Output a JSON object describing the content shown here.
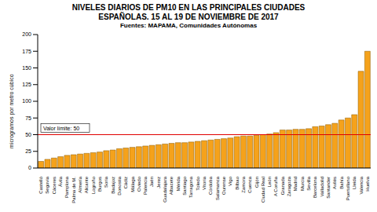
{
  "chart_data": {
    "type": "bar",
    "title": "NIVELES DIARIOS DE PM10 EN LAS PRINCIPALES CIUDADES ESPAÑOLAS. 15 AL 19 DE NOVIEMBRE DE 2017",
    "subtitle": "Fuentes: MAPAMA, Comunidades Autónomas",
    "y_label": "microgramos por metro cúbico",
    "categories": [
      "Castelló",
      "Segovia",
      "Cáceres",
      "Ávila",
      "Pamplona",
      "Palma de M.",
      "Almería",
      "Alicante",
      "Logroño",
      "Burgos",
      "Soria",
      "Badajoz",
      "Donostia",
      "Cádiz",
      "Málaga",
      "Oviedo",
      "Palencia",
      "Jaén",
      "Jerez",
      "Guadalajara",
      "Albacete",
      "Mérida",
      "Santiago",
      "Tarragona",
      "Toledo",
      "Vitoria",
      "Córdoba",
      "Salamanca",
      "Ourense",
      "Vigo",
      "Bilbao",
      "Zamora",
      "Cuenca",
      "Gijón",
      "Ciudad Real",
      "León",
      "A Coruña",
      "Granada",
      "Zaragoza",
      "Madrid",
      "Murcia",
      "Sevilla",
      "Barcelona",
      "Valladolid",
      "Santander",
      "Avilés",
      "Bahía",
      "Puertollano",
      "Lleida",
      "Valencia",
      "Huelva"
    ],
    "values": [
      10,
      13,
      15,
      17,
      19,
      20,
      21,
      22,
      23,
      24,
      26,
      27,
      29,
      30,
      31,
      32,
      33,
      34,
      35,
      36,
      37,
      38,
      38,
      39,
      40,
      41,
      42,
      43,
      44,
      45,
      47,
      48,
      48,
      49,
      50,
      51,
      53,
      57,
      57,
      58,
      58,
      59,
      62,
      63,
      65,
      67,
      72,
      75,
      80,
      145,
      175
    ],
    "color": "#f5a21b",
    "ylim": [
      0,
      200
    ],
    "yticks": [
      0,
      25,
      50,
      75,
      100,
      125,
      150,
      175,
      200
    ],
    "grid": false,
    "reference_line": {
      "value": 50,
      "label": "Valor límite: 50",
      "color": "#e00000"
    }
  }
}
